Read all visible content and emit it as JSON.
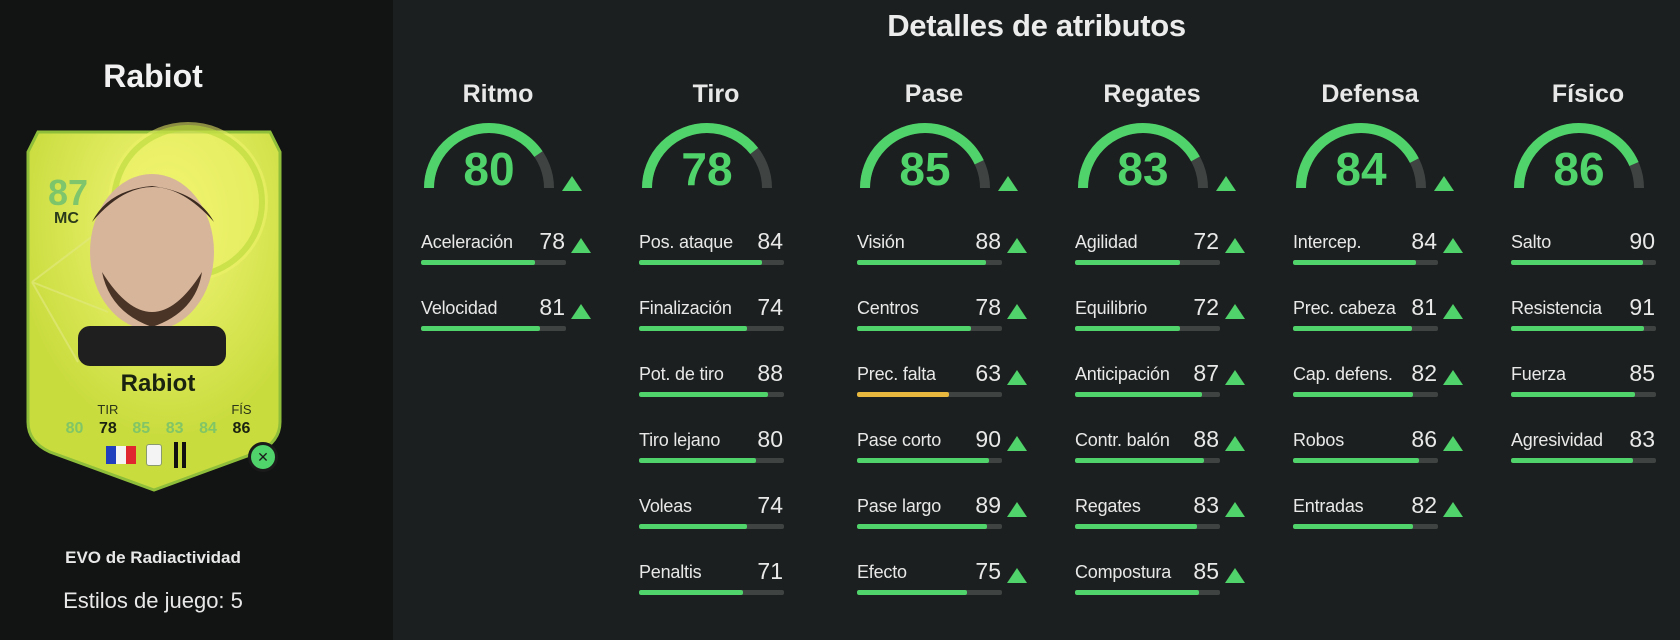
{
  "player": {
    "name": "Rabiot",
    "card": {
      "rating": "87",
      "position": "MC",
      "name": "Rabiot",
      "stat_labels": [
        "",
        "TIR",
        "",
        "",
        "",
        "FÍS"
      ],
      "stat_values": [
        "80",
        "78",
        "85",
        "83",
        "84",
        "86"
      ]
    },
    "evo_label": "EVO de Radiactividad",
    "playstyles": "Estilos de juego: 5"
  },
  "main_title": "Detalles de atributos",
  "colors": {
    "accent": "#4fd36a",
    "warning": "#e8b83e",
    "track": "#3f4342",
    "card_base": "#d8e84a"
  },
  "categories": [
    {
      "name": "Ritmo",
      "value": 80,
      "max": 99,
      "arrow": true,
      "stats": [
        {
          "label": "Aceleración",
          "value": 78,
          "arrow": true
        },
        {
          "label": "Velocidad",
          "value": 81,
          "arrow": true
        }
      ]
    },
    {
      "name": "Tiro",
      "value": 78,
      "max": 99,
      "arrow": false,
      "stats": [
        {
          "label": "Pos. ataque",
          "value": 84,
          "arrow": false
        },
        {
          "label": "Finalización",
          "value": 74,
          "arrow": false
        },
        {
          "label": "Pot. de tiro",
          "value": 88,
          "arrow": false
        },
        {
          "label": "Tiro lejano",
          "value": 80,
          "arrow": false
        },
        {
          "label": "Voleas",
          "value": 74,
          "arrow": false
        },
        {
          "label": "Penaltis",
          "value": 71,
          "arrow": false
        }
      ]
    },
    {
      "name": "Pase",
      "value": 85,
      "max": 99,
      "arrow": true,
      "stats": [
        {
          "label": "Visión",
          "value": 88,
          "arrow": true
        },
        {
          "label": "Centros",
          "value": 78,
          "arrow": true
        },
        {
          "label": "Prec. falta",
          "value": 63,
          "arrow": true,
          "tier": "mid"
        },
        {
          "label": "Pase corto",
          "value": 90,
          "arrow": true
        },
        {
          "label": "Pase largo",
          "value": 89,
          "arrow": true
        },
        {
          "label": "Efecto",
          "value": 75,
          "arrow": true
        }
      ]
    },
    {
      "name": "Regates",
      "value": 83,
      "max": 99,
      "arrow": true,
      "stats": [
        {
          "label": "Agilidad",
          "value": 72,
          "arrow": true
        },
        {
          "label": "Equilibrio",
          "value": 72,
          "arrow": true
        },
        {
          "label": "Anticipación",
          "value": 87,
          "arrow": true
        },
        {
          "label": "Contr. balón",
          "value": 88,
          "arrow": true
        },
        {
          "label": "Regates",
          "value": 83,
          "arrow": true
        },
        {
          "label": "Compostura",
          "value": 85,
          "arrow": true
        }
      ]
    },
    {
      "name": "Defensa",
      "value": 84,
      "max": 99,
      "arrow": true,
      "stats": [
        {
          "label": "Intercep.",
          "value": 84,
          "arrow": true
        },
        {
          "label": "Prec. cabeza",
          "value": 81,
          "arrow": true
        },
        {
          "label": "Cap. defens.",
          "value": 82,
          "arrow": true
        },
        {
          "label": "Robos",
          "value": 86,
          "arrow": true
        },
        {
          "label": "Entradas",
          "value": 82,
          "arrow": true
        }
      ]
    },
    {
      "name": "Físico",
      "value": 86,
      "max": 99,
      "arrow": false,
      "stats": [
        {
          "label": "Salto",
          "value": 90,
          "arrow": false
        },
        {
          "label": "Resistencia",
          "value": 91,
          "arrow": false
        },
        {
          "label": "Fuerza",
          "value": 85,
          "arrow": false
        },
        {
          "label": "Agresividad",
          "value": 83,
          "arrow": false
        }
      ]
    }
  ]
}
